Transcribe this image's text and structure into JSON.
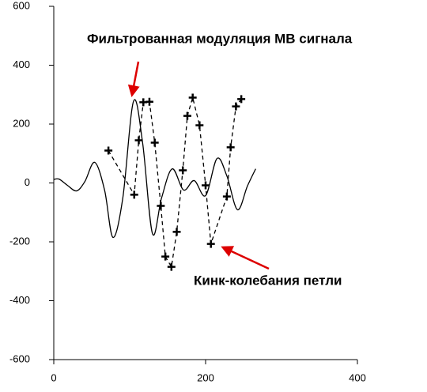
{
  "chart_data": {
    "type": "line",
    "annotations": [
      "Фильтрованная модуляция МВ сигнала",
      "Кинк-колебания петли"
    ],
    "series": [
      {
        "style": "solid",
        "color": "#000000",
        "x": [
          0,
          7,
          18,
          30,
          41,
          54,
          67,
          78,
          91,
          105,
          117,
          130,
          142,
          156,
          171,
          185,
          200,
          215,
          228,
          242,
          255,
          266
        ],
        "values": [
          12,
          13,
          -8,
          -27,
          5,
          70,
          -25,
          -185,
          -50,
          277,
          137,
          -172,
          -51,
          48,
          -24,
          8,
          -43,
          83,
          24,
          -91,
          -11,
          48
        ]
      },
      {
        "style": "dashed",
        "marker": "plus",
        "color": "#000000",
        "x": [
          72,
          106,
          112,
          118,
          126,
          133,
          141,
          147,
          155,
          162,
          170,
          176,
          183,
          192,
          200,
          207,
          228,
          233,
          240,
          247
        ],
        "values": [
          110,
          -40,
          145,
          274,
          276,
          137,
          -78,
          -250,
          -285,
          -166,
          43,
          228,
          290,
          196,
          -8,
          -207,
          -46,
          121,
          260,
          285
        ]
      }
    ],
    "xlim": [
      0,
      400
    ],
    "xticks": [
      0,
      200,
      400
    ],
    "ylim": [
      -600,
      600
    ],
    "yticks": [
      -600,
      -400,
      -200,
      0,
      200,
      400,
      600
    ]
  }
}
